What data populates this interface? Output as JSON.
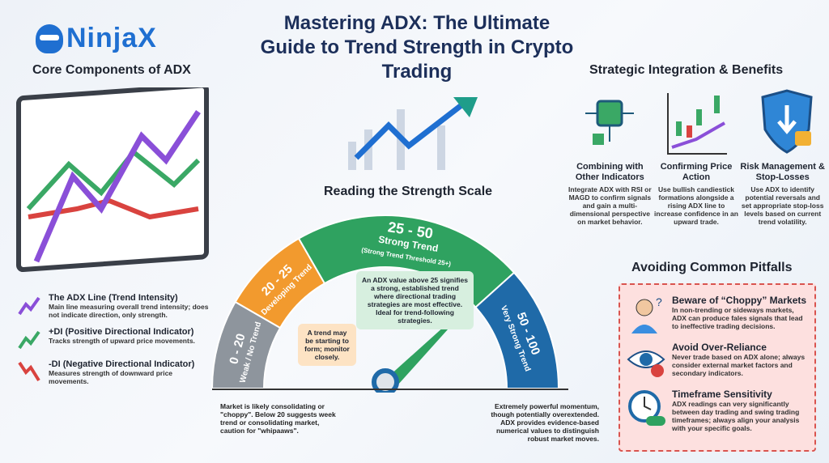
{
  "logo": {
    "text": "NinjaX"
  },
  "title": "Mastering ADX: The Ultimate Guide to Trend Strength in Crypto Trading",
  "core": {
    "title": "Core Components of ADX",
    "items": [
      {
        "title": "The ADX Line (Trend Intensity)",
        "desc": "Main line measuring overall trend intensity; does not indicate direction, only strength.",
        "color": "#8a4fd8",
        "icon": "purple-up-arrow-icon"
      },
      {
        "title": "+DI (Positive Directional Indicator)",
        "desc": "Tracks strength of upward price movements.",
        "color": "#3aa865",
        "icon": "green-up-arrow-icon"
      },
      {
        "title": "-DI (Negative Directional Indicator)",
        "desc": "Measures strength of downward price movements.",
        "color": "#d9433f",
        "icon": "red-down-arrow-icon"
      }
    ]
  },
  "scale": {
    "title": "Reading the Strength Scale",
    "segments": [
      {
        "range": "0 - 20",
        "label": "Weak / No Trend",
        "color": "#8e959d"
      },
      {
        "range": "20 - 25",
        "label": "Developing Trend",
        "color": "#f29a2e"
      },
      {
        "range": "25 - 50",
        "label": "Strong Trend",
        "sub": "(Strong Trend Threshold 25+)",
        "color": "#2fa260"
      },
      {
        "range": "50 - 100",
        "label": "Very Strong Trend",
        "color": "#1f6aa8"
      }
    ],
    "callout_strong": "An ADX value above 25 signifies a strong, established trend where directional trading strategies are most effective. Ideal for trend-following strategies.",
    "callout_developing": "A trend may be starting to form; monitor closely.",
    "note_weak": "Market is likely consolidating or \"choppy\". Below 20 suggests week trend or consolidating market, caution for \"whipaaws\".",
    "note_very_strong": "Extremely powerful momentum, though potentially overextended. ADX provides evidence-based numerical values to distinguish robust market moves."
  },
  "strategic": {
    "title": "Strategic Integration & Benefits",
    "items": [
      {
        "title": "Combining with Other Indicators",
        "desc": "Integrate ADX with RSI or MAGD to confirm signals and gain a multi-dimensional perspective on market behavior.",
        "icon": "circuit-chip-icon"
      },
      {
        "title": "Confirming Price Action",
        "desc": "Use bullish candiestick formations alongside a rising ADX line to increase confidence in an upward trade.",
        "icon": "candlestick-chart-icon"
      },
      {
        "title": "Risk Management & Stop-Losses",
        "desc": "Use ADX to identify potential reversals and set appropriate stop-loss levels based on current trend volatility.",
        "icon": "shield-lock-icon"
      }
    ]
  },
  "pitfalls": {
    "title": "Avoiding Common Pitfalls",
    "items": [
      {
        "title": "Beware of “Choppy” Markets",
        "desc": "In non-trending or sideways markets, ADX can produce fales signals that lead to ineffective trading decisions.",
        "icon": "confused-person-icon"
      },
      {
        "title": "Avoid Over-Reliance",
        "desc": "Never trade based on ADX alone; always consider external market factors and secondary indicators.",
        "icon": "eye-cross-icon"
      },
      {
        "title": "Timeframe Sensitivity",
        "desc": "ADX readings can very significantly between day trading and swing trading timeframes; always align your analysis with your specific goals.",
        "icon": "clock-toggle-icon"
      }
    ]
  }
}
